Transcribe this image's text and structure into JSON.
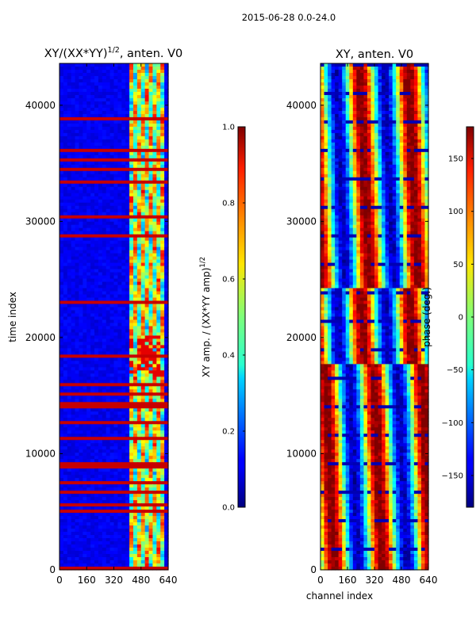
{
  "figure": {
    "suptitle": "2015-06-28 0.0-24.0"
  },
  "chart_data": [
    {
      "type": "heatmap",
      "title": "XY/(XX*YY)¹ᐟ², anten. V0",
      "title_main": "XY/(XX*YY)",
      "title_exp": "1/2",
      "title_tail": ", anten. V0",
      "xlabel": "",
      "ylabel": "time index",
      "xlim": [
        0,
        640
      ],
      "ylim": [
        0,
        43600
      ],
      "xticks": [
        0,
        160,
        320,
        480,
        640
      ],
      "yticks": [
        0,
        10000,
        20000,
        30000,
        40000
      ],
      "colorbar": {
        "label_main": "XY amp. / (XX*YY amp)",
        "label_exp": "1/2",
        "range": [
          0.0,
          1.0
        ],
        "ticks": [
          "0.0",
          "0.2",
          "0.4",
          "0.6",
          "0.8",
          "1.0"
        ],
        "colormap": "jet"
      }
    },
    {
      "type": "heatmap",
      "title": "XY, anten. V0",
      "xlabel": "channel index",
      "ylabel": "",
      "xlim": [
        0,
        640
      ],
      "ylim": [
        0,
        43600
      ],
      "xticks": [
        0,
        160,
        320,
        480,
        640
      ],
      "yticks": [
        0,
        10000,
        20000,
        30000,
        40000
      ],
      "colorbar": {
        "label": "phase (deg.)",
        "range": [
          -180,
          180
        ],
        "ticks": [
          "−150",
          "−100",
          "−50",
          "0",
          "50",
          "100",
          "150"
        ],
        "colormap": "jet"
      }
    }
  ]
}
